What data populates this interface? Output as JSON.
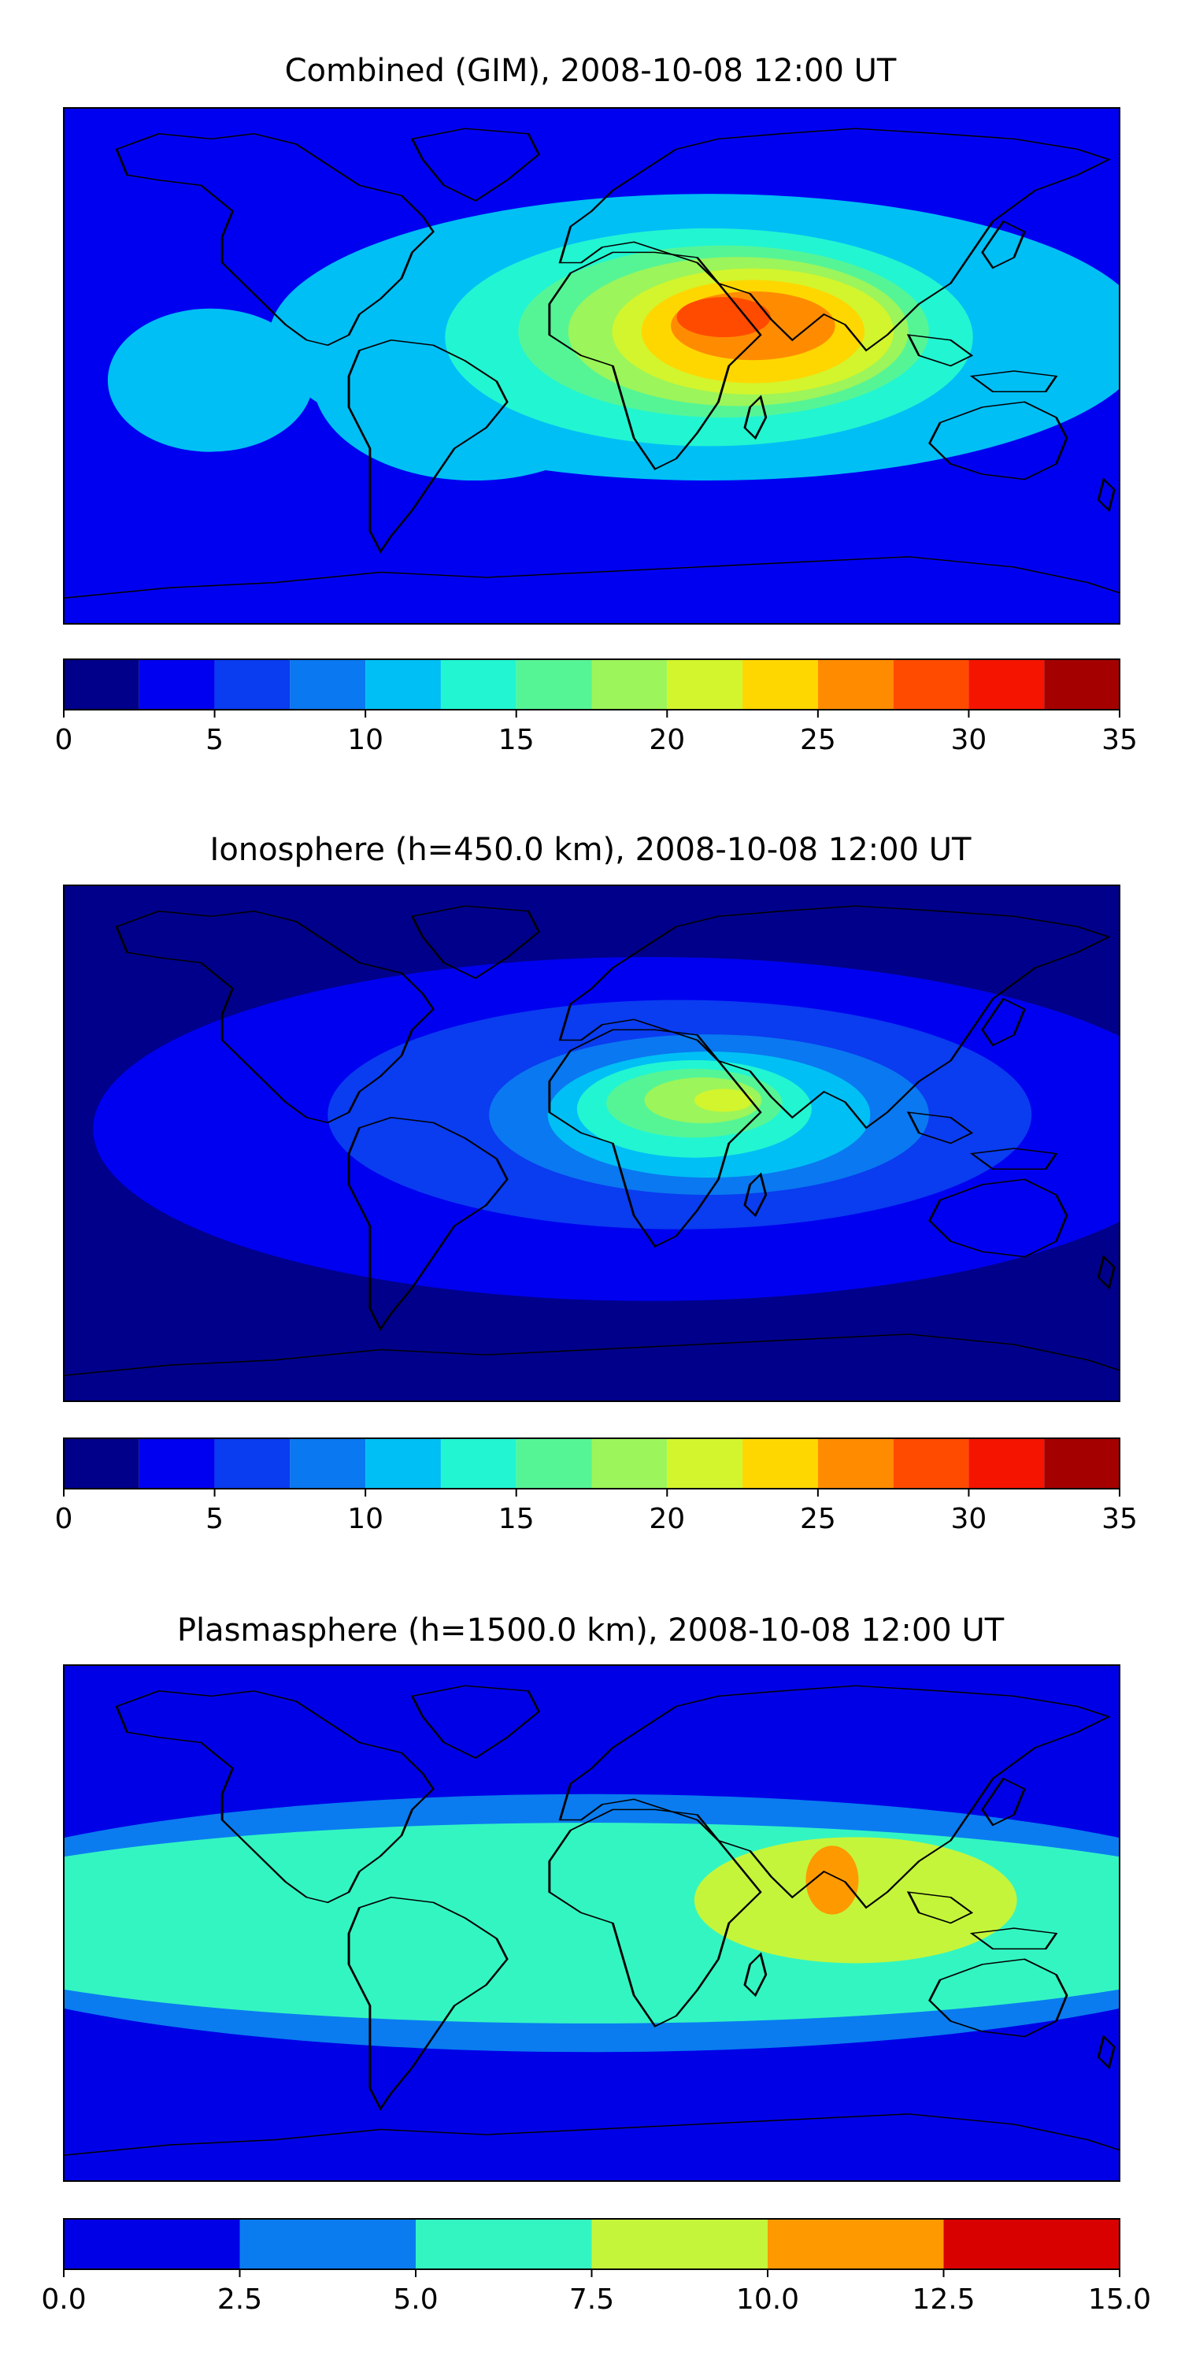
{
  "chart_data": [
    {
      "type": "heatmap",
      "title": "Combined (GIM), 2008-10-08 12:00 UT",
      "projection": "global map, longitude -180 to 180, latitude -90 to 90",
      "colorbar": {
        "levels": [
          0,
          2.5,
          5,
          7.5,
          10,
          12.5,
          15,
          17.5,
          20,
          22.5,
          25,
          27.5,
          30,
          32.5,
          35
        ],
        "tick_values": [
          0,
          5,
          10,
          15,
          20,
          25,
          30,
          35
        ],
        "tick_labels": [
          "0",
          "5",
          "10",
          "15",
          "20",
          "25",
          "30",
          "35"
        ],
        "colors": [
          "#00008b",
          "#0000f0",
          "#0a3cf0",
          "#0a78f0",
          "#00bff5",
          "#22f5d2",
          "#55f596",
          "#9cf55a",
          "#d2f52d",
          "#ffd700",
          "#ff8c00",
          "#ff4b00",
          "#f51400",
          "#a50000"
        ]
      },
      "regions": [
        {
          "lon": -130,
          "lat": -5,
          "rx": 35,
          "ry": 25,
          "level": 4
        },
        {
          "lon": -40,
          "lat": -5,
          "rx": 55,
          "ry": 35,
          "level": 4
        },
        {
          "lon": -40,
          "lat": -10,
          "rx": 25,
          "ry": 18,
          "level": 5
        },
        {
          "lon": 40,
          "lat": 10,
          "rx": 150,
          "ry": 50,
          "level": 4
        },
        {
          "lon": 40,
          "lat": 10,
          "rx": 90,
          "ry": 38,
          "level": 5
        },
        {
          "lon": 45,
          "lat": 12,
          "rx": 70,
          "ry": 30,
          "level": 6
        },
        {
          "lon": 50,
          "lat": 12,
          "rx": 58,
          "ry": 26,
          "level": 7
        },
        {
          "lon": 55,
          "lat": 12,
          "rx": 48,
          "ry": 22,
          "level": 8
        },
        {
          "lon": 55,
          "lat": 12,
          "rx": 38,
          "ry": 18,
          "level": 9
        },
        {
          "lon": 55,
          "lat": 14,
          "rx": 28,
          "ry": 12,
          "level": 10
        },
        {
          "lon": 45,
          "lat": 17,
          "rx": 16,
          "ry": 7,
          "level": 11
        }
      ]
    },
    {
      "type": "heatmap",
      "title": "Ionosphere  (h=450.0 km), 2008-10-08 12:00 UT",
      "projection": "global map, longitude -180 to 180, latitude -90 to 90",
      "colorbar": {
        "levels": [
          0,
          2.5,
          5,
          7.5,
          10,
          12.5,
          15,
          17.5,
          20,
          22.5,
          25,
          27.5,
          30,
          32.5,
          35
        ],
        "tick_values": [
          0,
          5,
          10,
          15,
          20,
          25,
          30,
          35
        ],
        "tick_labels": [
          "0",
          "5",
          "10",
          "15",
          "20",
          "25",
          "30",
          "35"
        ],
        "colors": [
          "#00008b",
          "#0000f0",
          "#0a3cf0",
          "#0a78f0",
          "#00bff5",
          "#22f5d2",
          "#55f596",
          "#9cf55a",
          "#d2f52d",
          "#ffd700",
          "#ff8c00",
          "#ff4b00",
          "#f51400",
          "#a50000"
        ]
      },
      "regions": [
        {
          "lon": 20,
          "lat": 5,
          "rx": 190,
          "ry": 60,
          "level": 1
        },
        {
          "lon": 30,
          "lat": 10,
          "rx": 120,
          "ry": 40,
          "level": 2
        },
        {
          "lon": 40,
          "lat": 10,
          "rx": 75,
          "ry": 28,
          "level": 3
        },
        {
          "lon": 40,
          "lat": 10,
          "rx": 55,
          "ry": 22,
          "level": 4
        },
        {
          "lon": 35,
          "lat": 12,
          "rx": 40,
          "ry": 17,
          "level": 5
        },
        {
          "lon": 35,
          "lat": 14,
          "rx": 30,
          "ry": 12,
          "level": 6
        },
        {
          "lon": 38,
          "lat": 15,
          "rx": 20,
          "ry": 8,
          "level": 7
        },
        {
          "lon": 45,
          "lat": 15,
          "rx": 10,
          "ry": 4,
          "level": 8
        }
      ]
    },
    {
      "type": "heatmap",
      "title": "Plasmasphere (h=1500.0 km), 2008-10-08 12:00 UT",
      "projection": "global map, longitude -180 to 180, latitude -90 to 90",
      "colorbar": {
        "levels": [
          0.0,
          2.5,
          5.0,
          7.5,
          10.0,
          12.5,
          15.0
        ],
        "tick_values": [
          0.0,
          2.5,
          5.0,
          7.5,
          10.0,
          12.5,
          15.0
        ],
        "tick_labels": [
          "0.0",
          "2.5",
          "5.0",
          "7.5",
          "10.0",
          "12.5",
          "15.0"
        ],
        "colors": [
          "#0000e6",
          "#0a7cf0",
          "#33f5c2",
          "#c4f53b",
          "#ff9900",
          "#d90000"
        ]
      },
      "regions": [
        {
          "lon": 0,
          "lat": 0,
          "rx": 240,
          "ry": 45,
          "level": 1
        },
        {
          "lon": 0,
          "lat": 0,
          "rx": 240,
          "ry": 35,
          "level": 2
        },
        {
          "lon": 90,
          "lat": 8,
          "rx": 55,
          "ry": 22,
          "level": 3
        },
        {
          "lon": 82,
          "lat": 15,
          "rx": 9,
          "ry": 12,
          "level": 4
        }
      ]
    }
  ]
}
